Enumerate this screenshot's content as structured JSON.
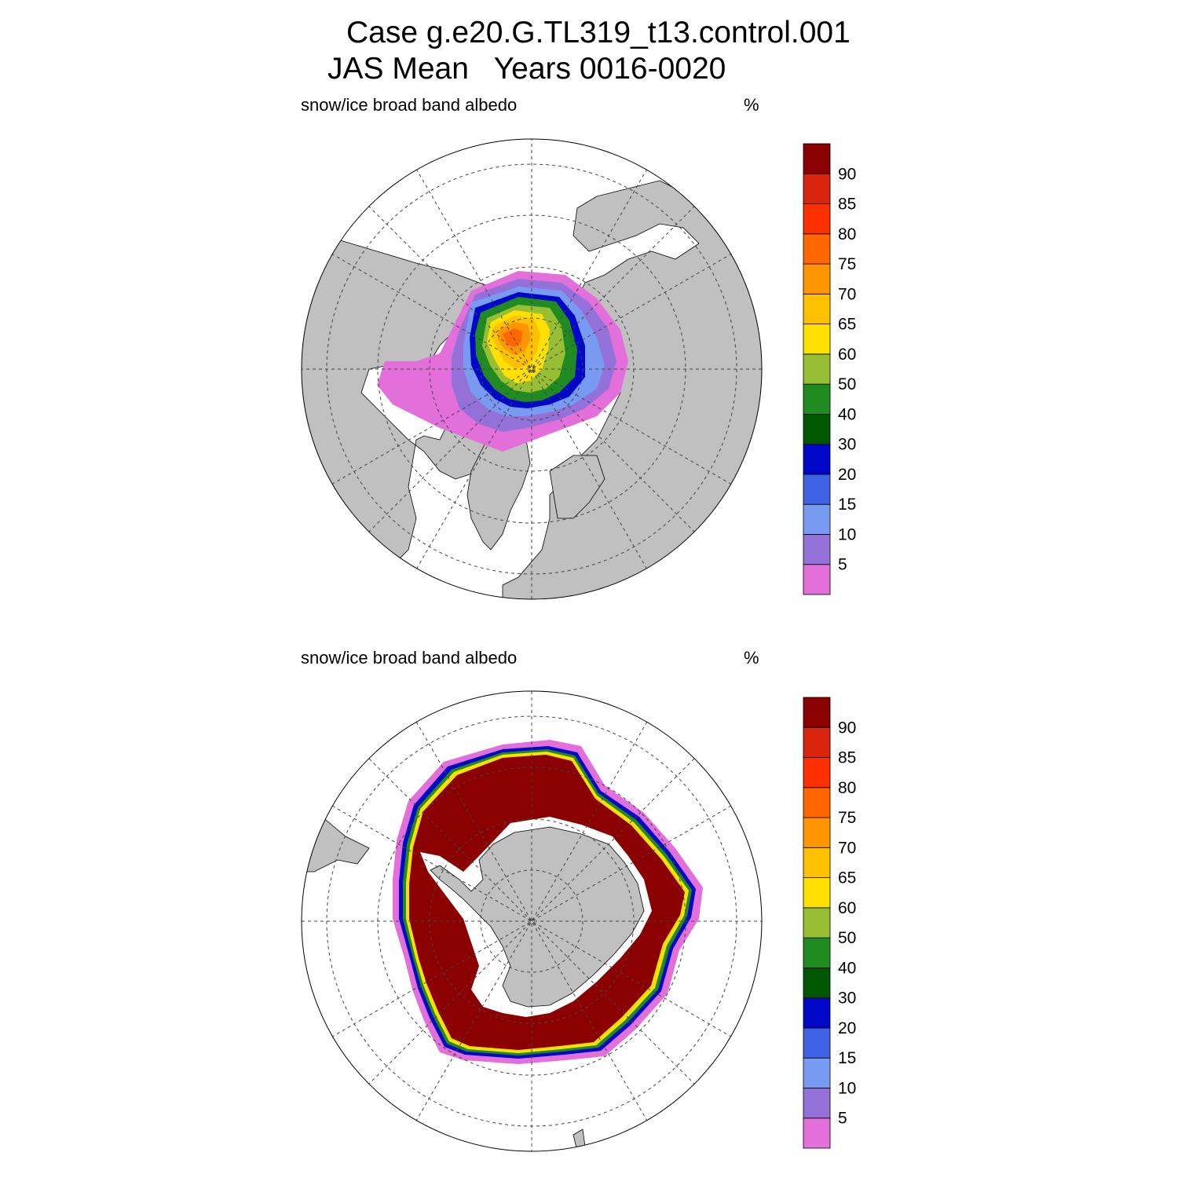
{
  "title": {
    "line1": "Case g.e20.G.TL319_t13.control.001",
    "line2": "JAS Mean   Years 0016-0020"
  },
  "colorbar": {
    "colors": [
      "#e36fdb",
      "#9470d9",
      "#789bf1",
      "#3f62e4",
      "#0007c6",
      "#005700",
      "#208b20",
      "#98bf33",
      "#ffe000",
      "#ffc000",
      "#ff9500",
      "#ff6700",
      "#ff3000",
      "#d9250e",
      "#8b0000"
    ],
    "tick_labels": [
      "5",
      "10",
      "15",
      "20",
      "30",
      "40",
      "50",
      "60",
      "65",
      "70",
      "75",
      "80",
      "85",
      "90"
    ]
  },
  "colors": {
    "land": "#c0c0c0",
    "ocean": "#ffffff",
    "grid": "#444444"
  },
  "panels": [
    {
      "id": "north",
      "hemisphere": "Northern Hemisphere polar stereographic",
      "variable": "snow/ice broad band albedo",
      "units": "%"
    },
    {
      "id": "south",
      "hemisphere": "Southern Hemisphere polar stereographic",
      "variable": "snow/ice broad band albedo",
      "units": "%"
    }
  ]
}
